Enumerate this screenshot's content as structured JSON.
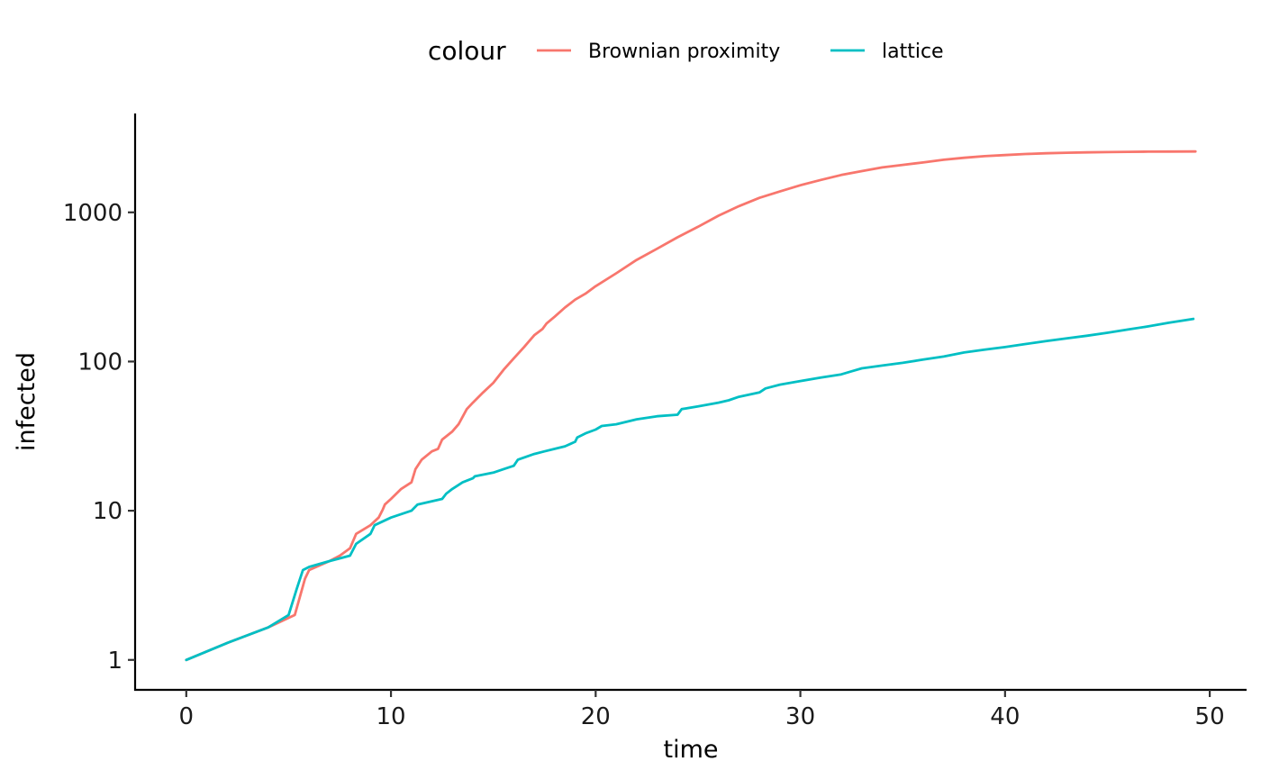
{
  "chart_data": {
    "type": "line",
    "xlabel": "time",
    "ylabel": "infected",
    "xlim": [
      -2.5,
      51.8
    ],
    "ylim": [
      0.63,
      4600
    ],
    "yscale": "log10",
    "x_ticks": [
      0,
      10,
      20,
      30,
      40,
      50
    ],
    "y_ticks": [
      1,
      10,
      100,
      1000
    ],
    "x_tick_labels": [
      "0",
      "10",
      "20",
      "30",
      "40",
      "50"
    ],
    "y_tick_labels": [
      "1",
      "10",
      "100",
      "1000"
    ],
    "grid": false,
    "legend": {
      "title": "colour",
      "position": "top",
      "entries": [
        "Brownian proximity",
        "lattice"
      ]
    },
    "series": [
      {
        "name": "Brownian proximity",
        "color": "#F8766D",
        "x": [
          0,
          2,
          4,
          5.3,
          5.8,
          6,
          7,
          7.5,
          8,
          8.3,
          9,
          9.4,
          9.6,
          9.7,
          10,
          10.5,
          11,
          11.2,
          11.5,
          12,
          12.3,
          12.5,
          13,
          13.3,
          13.7,
          14,
          14.5,
          15,
          15.5,
          16,
          16.5,
          17,
          17.4,
          17.6,
          18,
          18.5,
          19,
          19.5,
          20,
          21,
          22,
          23,
          24,
          25,
          26,
          27,
          28,
          29,
          30,
          31,
          32,
          33,
          34,
          35,
          36,
          37,
          38,
          39,
          40,
          41,
          42,
          43,
          44,
          45,
          46,
          47,
          48,
          49.3
        ],
        "y": [
          1,
          1.3,
          1.65,
          2,
          3.5,
          4,
          4.6,
          5,
          5.6,
          7,
          8,
          9,
          10.2,
          11,
          12,
          14,
          15.5,
          19,
          22,
          25,
          26,
          30,
          34,
          38,
          48,
          53,
          62,
          72,
          88,
          105,
          125,
          150,
          165,
          180,
          200,
          230,
          260,
          285,
          320,
          390,
          480,
          570,
          680,
          800,
          950,
          1100,
          1250,
          1380,
          1520,
          1650,
          1780,
          1890,
          2000,
          2080,
          2160,
          2250,
          2320,
          2380,
          2420,
          2460,
          2490,
          2510,
          2525,
          2535,
          2545,
          2550,
          2555,
          2560
        ]
      },
      {
        "name": "lattice",
        "color": "#00BFC4",
        "x": [
          0,
          2,
          4,
          5,
          5.4,
          5.7,
          6,
          7,
          8,
          8.3,
          9,
          9.2,
          10,
          11,
          11.3,
          12.5,
          12.7,
          13,
          13.5,
          14,
          14.1,
          15,
          15.5,
          16,
          16.2,
          17,
          17.5,
          18,
          18.5,
          19,
          19.1,
          19.5,
          20,
          20.3,
          21,
          22,
          23,
          24,
          24.2,
          25,
          26,
          26.5,
          27,
          28,
          28.3,
          29,
          30,
          31,
          32,
          32.5,
          33,
          34,
          35,
          36,
          37,
          38,
          39,
          40,
          41,
          42,
          43,
          44,
          45,
          46,
          47,
          48,
          49.2
        ],
        "y": [
          1,
          1.3,
          1.65,
          2,
          3,
          4,
          4.2,
          4.6,
          5,
          6,
          7,
          8,
          9,
          10,
          11,
          12,
          13,
          14,
          15.5,
          16.5,
          17,
          18,
          19,
          20,
          22,
          24,
          25,
          26,
          27,
          29,
          31,
          33,
          35,
          37,
          38,
          41,
          43,
          44,
          48,
          50,
          53,
          55,
          58,
          62,
          66,
          70,
          74,
          78,
          82,
          86,
          90,
          94,
          98,
          103,
          108,
          115,
          120,
          125,
          131,
          137,
          143,
          149,
          156,
          164,
          172,
          182,
          193
        ]
      }
    ]
  }
}
